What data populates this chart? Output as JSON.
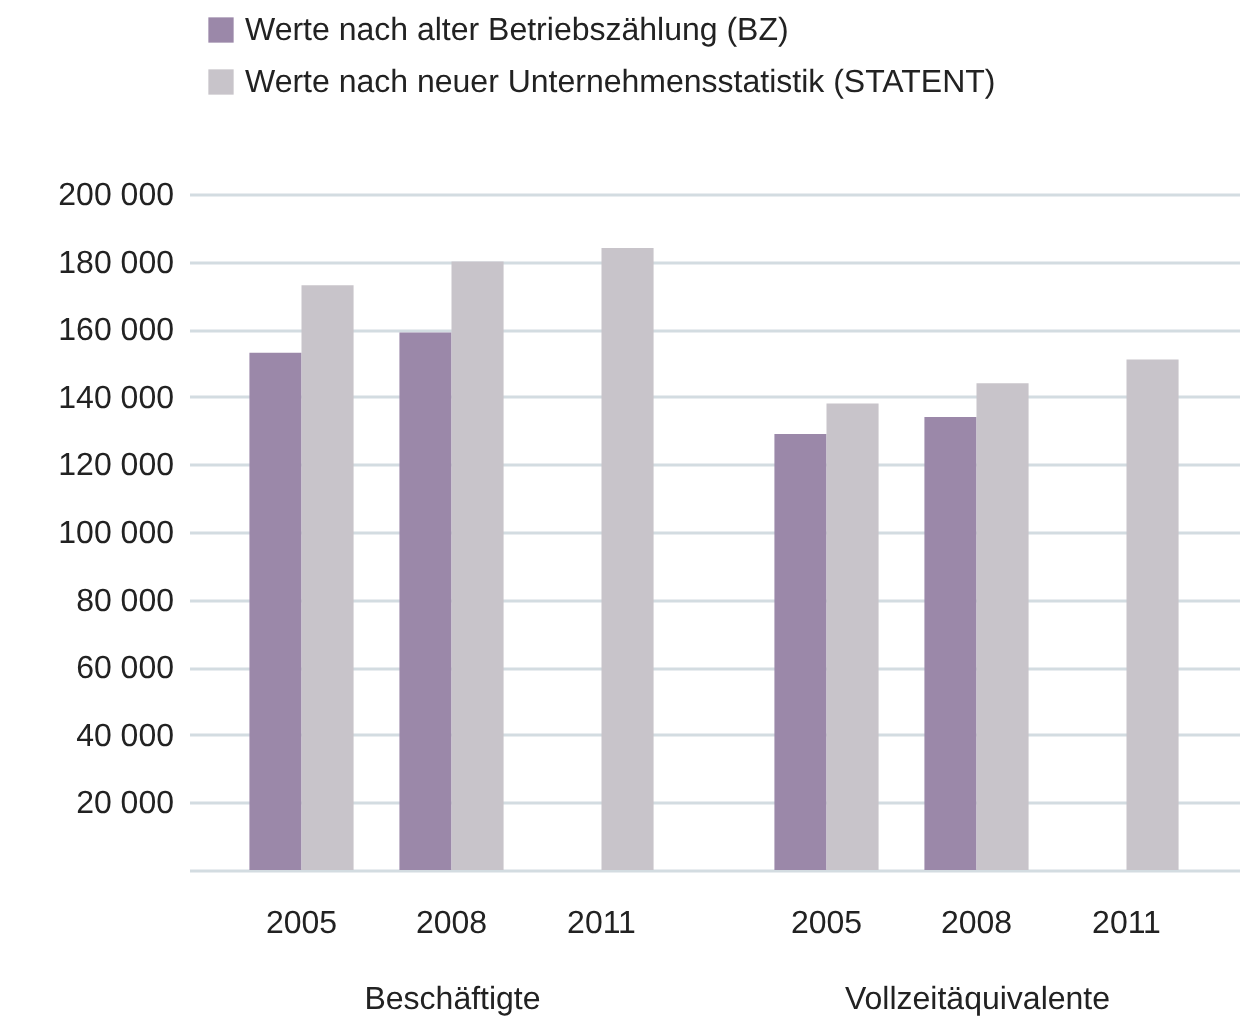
{
  "chart_data": [
    {
      "type": "bar",
      "categories": [
        "2005",
        "2008",
        "2011"
      ],
      "xlabel": "Beschäftigte",
      "ylim": [
        0,
        200000
      ],
      "yticks": [
        {
          "value": 0,
          "label": null
        },
        {
          "value": 20000,
          "label": "20 000"
        },
        {
          "value": 40000,
          "label": "40 000"
        },
        {
          "value": 60000,
          "label": "60 000"
        },
        {
          "value": 80000,
          "label": "80 000"
        },
        {
          "value": 100000,
          "label": "100 000"
        },
        {
          "value": 120000,
          "label": "120 000"
        },
        {
          "value": 140000,
          "label": "140 000"
        },
        {
          "value": 160000,
          "label": "160 000"
        },
        {
          "value": 180000,
          "label": "180 000"
        },
        {
          "value": 200000,
          "label": "200 000"
        }
      ],
      "grid": "y",
      "legend": "top",
      "series": [
        {
          "name": "Werte nach alter Betriebszählung (BZ)",
          "color": "#9b88a9",
          "values": [
            153000,
            159000,
            null
          ]
        },
        {
          "name": "Werte nach neuer Unternehmensstatistik (STATENT)",
          "color": "#c8c4ca",
          "values": [
            173000,
            180000,
            184000
          ]
        }
      ]
    },
    {
      "type": "bar",
      "categories": [
        "2005",
        "2008",
        "2011"
      ],
      "xlabel": "Vollzeitäquivalente",
      "ylim": [
        0,
        200000
      ],
      "yticks": [
        0,
        20000,
        40000,
        60000,
        80000,
        100000,
        120000,
        140000,
        160000,
        180000,
        200000
      ],
      "grid": "y",
      "tick_labels": "x",
      "series": [
        {
          "color": "#9b88a9",
          "values": [
            129000,
            134000,
            null
          ]
        },
        {
          "color": "#c8c4ca",
          "values": [
            138000,
            144000,
            151000
          ]
        }
      ]
    }
  ]
}
